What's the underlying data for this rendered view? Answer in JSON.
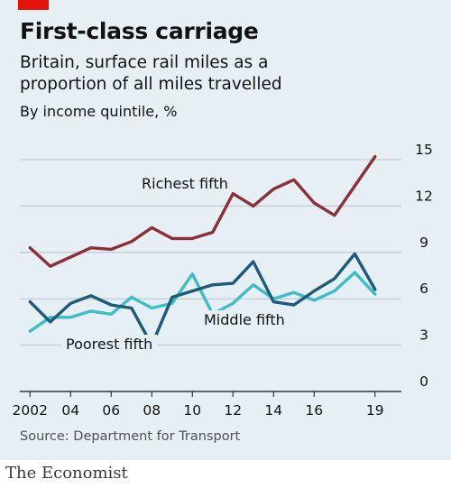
{
  "header": {
    "title": "First-class carriage",
    "subtitle": "Britain, surface rail miles as a proportion of all miles travelled",
    "units": "By income quintile, %"
  },
  "footer": {
    "source": "Source: Department for Transport",
    "brand": "The Economist"
  },
  "colors": {
    "background": "#e6eff4",
    "brand_red": "#e3120b",
    "richest": "#8c2f39",
    "middle": "#1d5a7c",
    "poorest": "#3ebdc6",
    "grid": "#b7c3cb",
    "axis": "#121212"
  },
  "chart_data": {
    "type": "line",
    "title": "First-class carriage",
    "subtitle": "Britain, surface rail miles as a proportion of all miles travelled",
    "ylabel": "By income quintile, %",
    "xlabel": "",
    "x": [
      2002,
      2003,
      2004,
      2005,
      2006,
      2007,
      2008,
      2009,
      2010,
      2011,
      2012,
      2013,
      2014,
      2015,
      2016,
      2017,
      2018,
      2019
    ],
    "xticks": [
      2002,
      2004,
      2006,
      2008,
      2010,
      2012,
      2014,
      2016,
      2019
    ],
    "xtick_labels": [
      "2002",
      "04",
      "06",
      "08",
      "10",
      "12",
      "14",
      "16",
      "19"
    ],
    "ylim": [
      0,
      15
    ],
    "yticks": [
      0,
      3,
      6,
      9,
      12,
      15
    ],
    "grid": true,
    "y_axis_side": "right",
    "series": [
      {
        "name": "Richest fifth",
        "key": "richest",
        "values": [
          9.3,
          8.1,
          8.7,
          9.3,
          9.2,
          9.7,
          10.6,
          9.9,
          9.9,
          10.3,
          12.8,
          12.0,
          13.1,
          13.7,
          12.2,
          11.4,
          13.3,
          15.2
        ]
      },
      {
        "name": "Middle fifth",
        "key": "middle",
        "values": [
          5.8,
          4.5,
          5.7,
          6.2,
          5.6,
          5.4,
          3.0,
          6.1,
          6.5,
          6.9,
          7.0,
          8.4,
          5.8,
          5.6,
          6.5,
          7.3,
          8.9,
          6.6
        ]
      },
      {
        "name": "Poorest fifth",
        "key": "poorest",
        "values": [
          3.9,
          4.8,
          4.8,
          5.2,
          5.0,
          6.1,
          5.4,
          5.7,
          7.6,
          5.0,
          5.7,
          6.9,
          6.0,
          6.4,
          5.9,
          6.5,
          7.7,
          6.3
        ]
      }
    ]
  }
}
